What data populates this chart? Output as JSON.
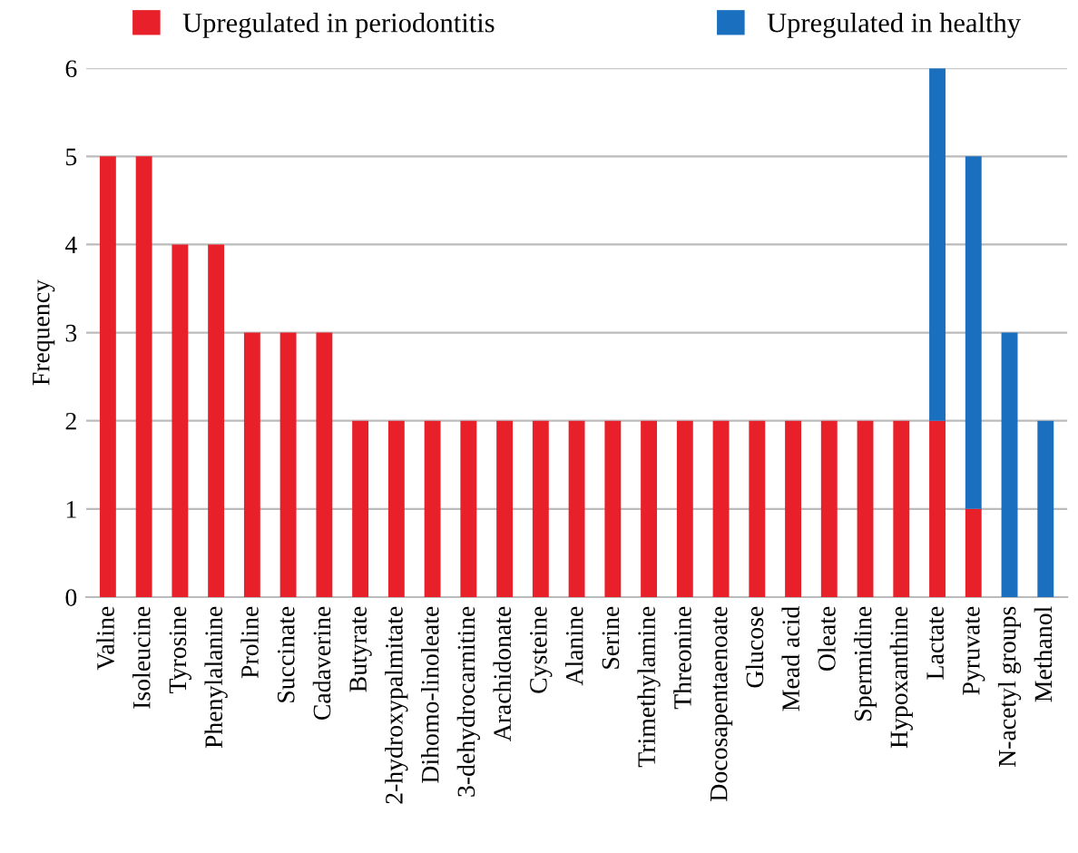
{
  "chart_data": {
    "type": "bar",
    "stacked": true,
    "ylabel": "Frequency",
    "categories": [
      "Valine",
      "Isoleucine",
      "Tyrosine",
      "Phenylalanine",
      "Proline",
      "Succinate",
      "Cadaverine",
      "Butyrate",
      "2-hydroxypalmitate",
      "Dihomo-linoleate",
      "3-dehydrocarnitine",
      "Arachidonate",
      "Cysteine",
      "Alanine",
      "Serine",
      "Trimethylamine",
      "Threonine",
      "Docosapentaenoate",
      "Glucose",
      "Mead acid",
      "Oleate",
      "Spermidine",
      "Hypoxanthine",
      "Lactate",
      "Pyruvate",
      "N-acetyl groups",
      "Methanol"
    ],
    "series": [
      {
        "name": "Upregulated in periodontitis",
        "color": "#e8202a",
        "values": [
          5,
          5,
          4,
          4,
          3,
          3,
          3,
          2,
          2,
          2,
          2,
          2,
          2,
          2,
          2,
          2,
          2,
          2,
          2,
          2,
          2,
          2,
          2,
          2,
          1,
          0,
          0
        ]
      },
      {
        "name": "Upregulated in healthy",
        "color": "#1a6fbf",
        "values": [
          0,
          0,
          0,
          0,
          0,
          0,
          0,
          0,
          0,
          0,
          0,
          0,
          0,
          0,
          0,
          0,
          0,
          0,
          0,
          0,
          0,
          0,
          0,
          4,
          4,
          3,
          2
        ]
      }
    ],
    "ylim": [
      0,
      6
    ],
    "yticks": [
      0,
      1,
      2,
      3,
      4,
      5,
      6
    ],
    "grid": "y",
    "legend": "top"
  }
}
